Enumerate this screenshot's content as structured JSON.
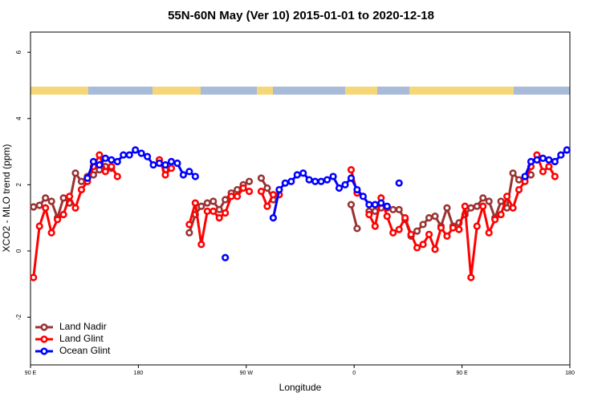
{
  "chart_data": {
    "type": "line",
    "title": "55N-60N May (Ver 10)   2015-01-01 to 2020-12-18",
    "x_label": "Longitude",
    "y_label": "XCO2 - MLO trend (ppm)",
    "xlim": [
      90,
      540
    ],
    "xticks": [
      {
        "value": 90,
        "label": "90 E"
      },
      {
        "value": 180,
        "label": "180"
      },
      {
        "value": 270,
        "label": "90 W"
      },
      {
        "value": 360,
        "label": "0"
      },
      {
        "value": 450,
        "label": "90 E"
      },
      {
        "value": 540,
        "label": "180"
      }
    ],
    "ylim": [
      -3.44,
      6.61
    ],
    "yticks": [
      -2,
      0,
      2,
      4,
      6
    ],
    "legend": "bottom-left",
    "series": [
      {
        "name": "Land Nadir",
        "color": "#993333",
        "x": [
          92.5,
          97.5,
          102.5,
          107.5,
          112.5,
          117.5,
          122.5,
          127.5,
          132.5,
          137.5,
          142.5,
          147.5,
          152.5,
          157.5,
          162.5,
          197.5,
          202.5,
          207.5,
          222.5,
          227.5,
          232.5,
          237.5,
          242.5,
          247.5,
          252.5,
          257.5,
          262.5,
          267.5,
          272.5,
          277.5,
          282.5,
          287.5,
          292.5,
          297.5,
          357.5,
          362.5,
          367.5,
          372.5,
          377.5,
          382.5,
          387.5,
          392.5,
          397.5,
          402.5,
          407.5,
          412.5,
          417.5,
          422.5,
          427.5,
          432.5,
          437.5,
          442.5,
          447.5,
          452.5,
          457.5,
          462.5,
          467.5,
          472.5,
          477.5,
          482.5,
          487.5,
          492.5,
          497.5,
          502.5,
          507.5
        ],
        "values": [
          1.33,
          1.38,
          1.6,
          1.5,
          1.0,
          1.6,
          1.45,
          2.35,
          2.1,
          2.25,
          2.3,
          2.45,
          2.55,
          2.5,
          null,
          2.75,
          2.45,
          null,
          0.55,
          1.1,
          1.35,
          1.45,
          1.5,
          1.25,
          1.55,
          1.75,
          1.85,
          2.0,
          2.1,
          null,
          2.2,
          1.9,
          1.55,
          null,
          1.4,
          0.68,
          null,
          1.2,
          1.2,
          1.3,
          1.3,
          1.25,
          1.25,
          0.95,
          0.45,
          0.6,
          0.8,
          1.0,
          1.05,
          0.75,
          1.3,
          0.75,
          0.85,
          1.1,
          1.3,
          1.35,
          1.6,
          1.5,
          1.0,
          1.5,
          1.3,
          2.35,
          2.15,
          2.2,
          2.3
        ]
      },
      {
        "name": "Land Glint",
        "color": "#ff0000",
        "x": [
          92.5,
          97.5,
          102.5,
          107.5,
          112.5,
          117.5,
          122.5,
          127.5,
          132.5,
          137.5,
          142.5,
          147.5,
          152.5,
          157.5,
          162.5,
          167.5,
          197.5,
          202.5,
          207.5,
          212.5,
          222.5,
          227.5,
          232.5,
          237.5,
          242.5,
          247.5,
          252.5,
          257.5,
          262.5,
          267.5,
          272.5,
          277.5,
          282.5,
          287.5,
          292.5,
          297.5,
          302.5,
          357.5,
          362.5,
          367.5,
          372.5,
          377.5,
          382.5,
          387.5,
          392.5,
          397.5,
          402.5,
          407.5,
          412.5,
          417.5,
          422.5,
          427.5,
          432.5,
          437.5,
          442.5,
          447.5,
          452.5,
          457.5,
          462.5,
          467.5,
          472.5,
          477.5,
          482.5,
          487.5,
          492.5,
          497.5,
          502.5,
          507.5,
          512.5,
          517.5,
          522.5,
          527.5
        ],
        "values": [
          -0.8,
          0.75,
          1.3,
          0.55,
          0.95,
          1.1,
          1.65,
          1.3,
          1.85,
          2.1,
          2.55,
          2.9,
          2.4,
          2.55,
          2.25,
          null,
          2.75,
          2.3,
          2.5,
          null,
          0.8,
          1.45,
          0.2,
          1.2,
          1.2,
          1.0,
          1.15,
          1.65,
          1.65,
          1.9,
          1.8,
          null,
          1.8,
          1.35,
          1.7,
          1.7,
          null,
          2.45,
          1.75,
          null,
          1.1,
          0.75,
          1.6,
          1.05,
          0.55,
          0.65,
          1.0,
          0.5,
          0.1,
          0.2,
          0.5,
          0.05,
          0.7,
          0.45,
          0.7,
          0.65,
          1.35,
          -0.8,
          0.75,
          1.35,
          0.55,
          0.95,
          1.1,
          1.65,
          1.3,
          1.85,
          2.1,
          2.55,
          2.9,
          2.4,
          2.55,
          2.25
        ]
      },
      {
        "name": "Ocean Glint",
        "color": "#0000ff",
        "x": [
          137.5,
          142.5,
          147.5,
          152.5,
          157.5,
          162.5,
          167.5,
          172.5,
          177.5,
          182.5,
          187.5,
          192.5,
          197.5,
          202.5,
          207.5,
          212.5,
          217.5,
          222.5,
          227.5,
          232.5,
          252.5,
          257.5,
          292.5,
          297.5,
          302.5,
          307.5,
          312.5,
          317.5,
          322.5,
          327.5,
          332.5,
          337.5,
          342.5,
          347.5,
          352.5,
          357.5,
          362.5,
          367.5,
          372.5,
          377.5,
          382.5,
          387.5,
          392.5,
          397.5,
          402.5,
          502.5,
          507.5,
          512.5,
          517.5,
          522.5,
          527.5,
          532.5,
          537.5
        ],
        "values": [
          2.2,
          2.7,
          2.6,
          2.8,
          2.75,
          2.7,
          2.9,
          2.9,
          3.05,
          2.95,
          2.85,
          2.6,
          2.65,
          2.6,
          2.7,
          2.65,
          2.3,
          2.4,
          2.25,
          null,
          -0.2,
          null,
          1.0,
          1.85,
          2.05,
          2.1,
          2.3,
          2.35,
          2.15,
          2.1,
          2.1,
          2.15,
          2.25,
          1.9,
          2.0,
          2.2,
          1.85,
          1.65,
          1.4,
          1.4,
          1.45,
          1.35,
          null,
          2.05,
          null,
          2.25,
          2.7,
          2.75,
          2.8,
          2.75,
          2.7,
          2.9,
          3.05
        ]
      }
    ]
  }
}
